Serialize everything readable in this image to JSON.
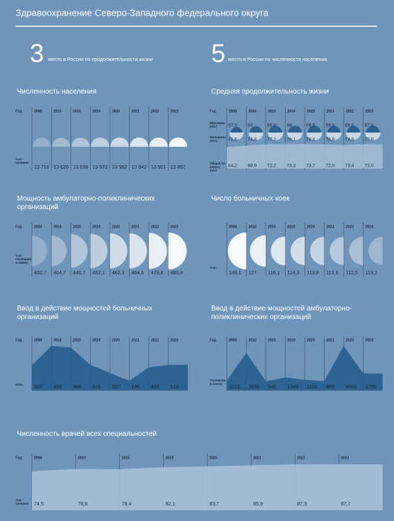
{
  "header": {
    "title": "Здравоохранение Северо-Западного федерального округа"
  },
  "facts": [
    {
      "number": 3,
      "text": "место в России по продолжительности жизни"
    },
    {
      "number": 5,
      "text": "место в России по численности населения"
    }
  ],
  "chart_data": [
    {
      "type": "half-circle-up",
      "title": "Численность населения",
      "year_label": "Год",
      "unit": "тыс. человек",
      "color": "#ffffff",
      "categories": [
        "2008",
        "2010",
        "2015",
        "2019",
        "2020",
        "2021",
        "2022",
        "2023"
      ],
      "values": [
        13716,
        13626,
        13699,
        13972,
        13962,
        13942,
        13901,
        13867
      ],
      "value_labels": [
        "13 716",
        "13 626",
        "13 699",
        "13 972",
        "13 962",
        "13 942",
        "13 901",
        "13 867"
      ]
    },
    {
      "type": "circle-area",
      "title": "Средняя продолжительность жизни",
      "year_label": "Год",
      "categories": [
        "2008",
        "2010",
        "2015",
        "2019",
        "2020",
        "2021",
        "2022",
        "2023"
      ],
      "series": [
        {
          "name": "Мужчины (лет)",
          "color": "#2f5f8c",
          "values": [
            57.5,
            63,
            66.8,
            68,
            68.6,
            66.8,
            65.6,
            67.9
          ],
          "value_labels": [
            "57,5",
            "63",
            "66,8",
            "68",
            "68,6",
            "66,8",
            "65,6",
            "67,9"
          ]
        },
        {
          "name": "Женщины (лет)",
          "color": "#c9d7e6",
          "values": [
            71.6,
            74.8,
            77.2,
            78.1,
            78.4,
            76.9,
            74.9,
            77.8
          ],
          "value_labels": [
            "71,6",
            "74,8",
            "77,2",
            "78,1",
            "78,4",
            "76,9",
            "74,9",
            "77,8"
          ]
        },
        {
          "name": "Общая по округу (лет)",
          "color": "#a7bed6",
          "values": [
            64.2,
            68.9,
            72.2,
            73.3,
            73.7,
            72.0,
            70.4,
            73.0
          ],
          "value_labels": [
            "64,2",
            "68,9",
            "72,2",
            "73,3",
            "73,7",
            "72,0",
            "70,4",
            "73,0"
          ]
        }
      ]
    },
    {
      "type": "half-circle-right",
      "title": "Мощность амбулаторно-поликлинических организаций",
      "year_label": "Год",
      "unit": "тыс. посещений в смену",
      "color": "#ffffff",
      "categories": [
        "2008",
        "2010",
        "2015",
        "2019",
        "2020",
        "2021",
        "2022",
        "2023"
      ],
      "values": [
        402.7,
        404.7,
        440.7,
        452.1,
        462.3,
        464.6,
        478.8,
        485.8
      ],
      "value_labels": [
        "402,7",
        "404,7",
        "440,7",
        "452,1",
        "462,3",
        "464,6",
        "478,8",
        "485,8"
      ]
    },
    {
      "type": "half-circle-left",
      "title": "Число больничных коек",
      "unit": "тыс.",
      "color": "#ffffff",
      "categories": [
        "2008",
        "2010",
        "2015",
        "2019",
        "2020",
        "2021",
        "2022",
        "2023"
      ],
      "values": [
        148.1,
        127,
        116.1,
        114.3,
        113.8,
        112.6,
        112.5,
        113.2
      ],
      "value_labels": [
        "148,1",
        "127",
        "116,1",
        "114,3",
        "113,8",
        "112,6",
        "112,5",
        "113,2"
      ]
    },
    {
      "type": "area",
      "title": "Ввод в действие мощностей больничных организаций",
      "year_label": "Год",
      "unit": "коек",
      "color": "#275d8d",
      "categories": [
        "2008",
        "2010",
        "2015",
        "2019",
        "2020",
        "2021",
        "2022",
        "2023"
      ],
      "values": [
        507,
        898,
        866,
        515,
        357,
        196,
        469,
        516
      ]
    },
    {
      "type": "area",
      "title": "Ввод в действие мощностей амбулаторно-поликлинических организаций",
      "year_label": "Год",
      "unit": "посещений в смену",
      "color": "#275d8d",
      "categories": [
        "2008",
        "2010",
        "2015",
        "2019",
        "2020",
        "2021",
        "2022",
        "2023"
      ],
      "values": [
        1013,
        3838,
        945,
        1349,
        1105,
        969,
        4550,
        1755
      ]
    },
    {
      "type": "area",
      "title": "Численность врачей всех специальностей",
      "year_label": "Год",
      "unit": "тыс. человек",
      "color": "#a9c0d8",
      "categories": [
        "2008",
        "2010",
        "2015",
        "2019",
        "2020",
        "2021",
        "2022",
        "2023"
      ],
      "values": [
        74.5,
        78.8,
        78.4,
        82.1,
        83.7,
        85.8,
        87.3,
        87.7
      ],
      "value_labels": [
        "74,5",
        "78,8",
        "78,4",
        "82,1",
        "83,7",
        "85,8",
        "87,3",
        "87,7"
      ]
    }
  ]
}
